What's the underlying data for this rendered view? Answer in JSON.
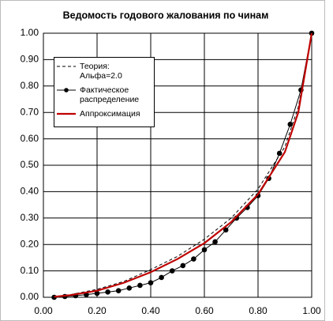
{
  "chart_data": {
    "type": "line",
    "title": "Ведомость годового жалования по чинам",
    "xlim": [
      0,
      1
    ],
    "ylim": [
      0,
      1
    ],
    "xticks": [
      {
        "value": 0,
        "label": "0.00"
      },
      {
        "value": 0.2,
        "label": "0.20"
      },
      {
        "value": 0.4,
        "label": "0.40"
      },
      {
        "value": 0.6,
        "label": "0.60"
      },
      {
        "value": 0.8,
        "label": "0.80"
      },
      {
        "value": 1,
        "label": "1.00"
      }
    ],
    "yticks": [
      {
        "value": 0,
        "label": "0.00"
      },
      {
        "value": 0.1,
        "label": "0.10"
      },
      {
        "value": 0.2,
        "label": "0.20"
      },
      {
        "value": 0.3,
        "label": "0.30"
      },
      {
        "value": 0.4,
        "label": "0.40"
      },
      {
        "value": 0.5,
        "label": "0.50"
      },
      {
        "value": 0.6,
        "label": "0.60"
      },
      {
        "value": 0.7,
        "label": "0.70"
      },
      {
        "value": 0.8,
        "label": "0.80"
      },
      {
        "value": 0.9,
        "label": "0.90"
      },
      {
        "value": 1,
        "label": "1.00"
      }
    ],
    "grid": true,
    "series": [
      {
        "name": "Теория: Альфа=2.0",
        "color": "#000000",
        "style": "dashed",
        "x": [
          0.04,
          0.1,
          0.2,
          0.3,
          0.4,
          0.5,
          0.6,
          0.7,
          0.8,
          0.9,
          0.95,
          1.0
        ],
        "values": [
          0.002,
          0.01,
          0.03,
          0.06,
          0.105,
          0.155,
          0.22,
          0.3,
          0.41,
          0.57,
          0.72,
          1.0
        ]
      },
      {
        "name": "Фактическое распределение",
        "color": "#000000",
        "style": "markers",
        "x": [
          0.04,
          0.08,
          0.12,
          0.16,
          0.2,
          0.24,
          0.28,
          0.32,
          0.36,
          0.4,
          0.44,
          0.48,
          0.52,
          0.56,
          0.6,
          0.64,
          0.68,
          0.72,
          0.76,
          0.8,
          0.84,
          0.88,
          0.92,
          0.96,
          1.0
        ],
        "values": [
          0.0,
          0.003,
          0.006,
          0.01,
          0.015,
          0.02,
          0.025,
          0.035,
          0.045,
          0.055,
          0.075,
          0.1,
          0.12,
          0.145,
          0.18,
          0.21,
          0.255,
          0.3,
          0.34,
          0.385,
          0.45,
          0.545,
          0.655,
          0.785,
          1.0
        ]
      },
      {
        "name": "Аппроксимация",
        "color": "#c00000",
        "style": "thick",
        "x": [
          0.04,
          0.1,
          0.2,
          0.3,
          0.4,
          0.5,
          0.6,
          0.7,
          0.8,
          0.9,
          0.95,
          1.0
        ],
        "values": [
          0.002,
          0.008,
          0.025,
          0.055,
          0.095,
          0.145,
          0.205,
          0.285,
          0.39,
          0.55,
          0.7,
          1.0
        ]
      }
    ]
  }
}
